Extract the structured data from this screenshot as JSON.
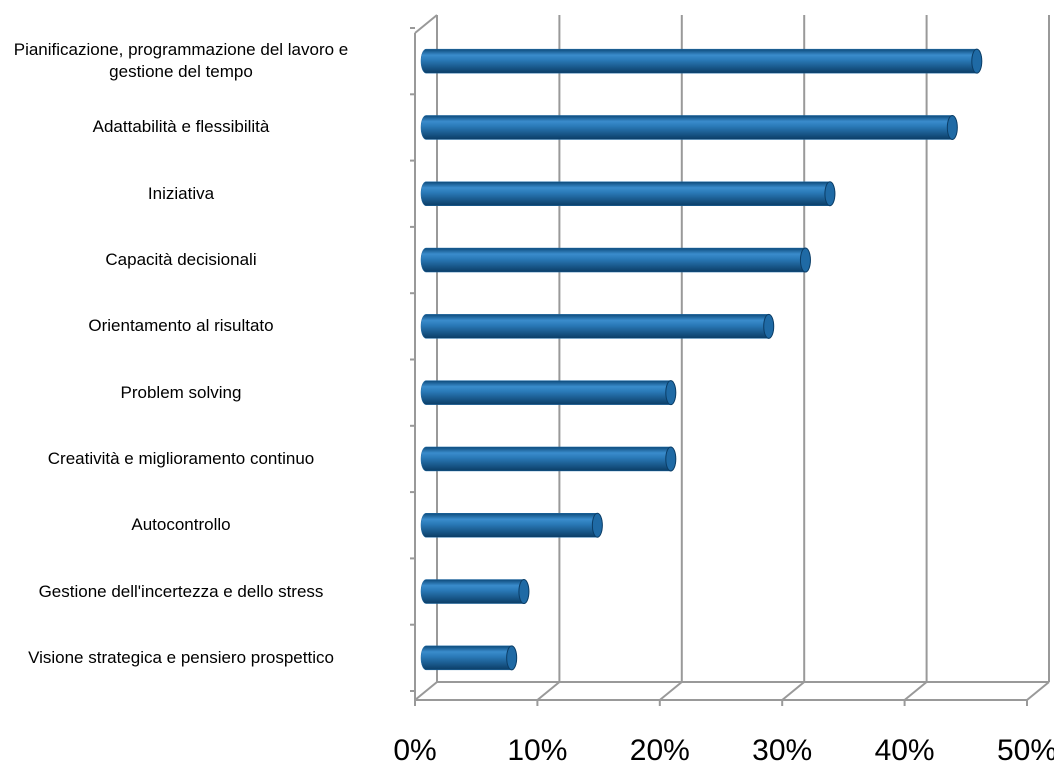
{
  "chart_data": {
    "type": "bar",
    "orientation": "horizontal",
    "categories": [
      "Pianificazione, programmazione del lavoro e gestione del tempo",
      "Adattabilità e flessibilità",
      "Iniziativa",
      "Capacità decisionali",
      "Orientamento al risultato",
      "Problem solving",
      "Creatività e miglioramento continuo",
      "Autocontrollo",
      "Gestione dell'incertezza e dello stress",
      "Visione strategica e pensiero prospettico"
    ],
    "values": [
      45,
      43,
      33,
      31,
      28,
      20,
      20,
      14,
      8,
      7
    ],
    "color": "#1f6aa5",
    "xlim": [
      0,
      50
    ],
    "xticks": [
      {
        "value": 0,
        "label": "0%"
      },
      {
        "value": 10,
        "label": "10%"
      },
      {
        "value": 20,
        "label": "20%"
      },
      {
        "value": 30,
        "label": "30%"
      },
      {
        "value": 40,
        "label": "40%"
      },
      {
        "value": 50,
        "label": "50%"
      }
    ],
    "grid": true
  }
}
